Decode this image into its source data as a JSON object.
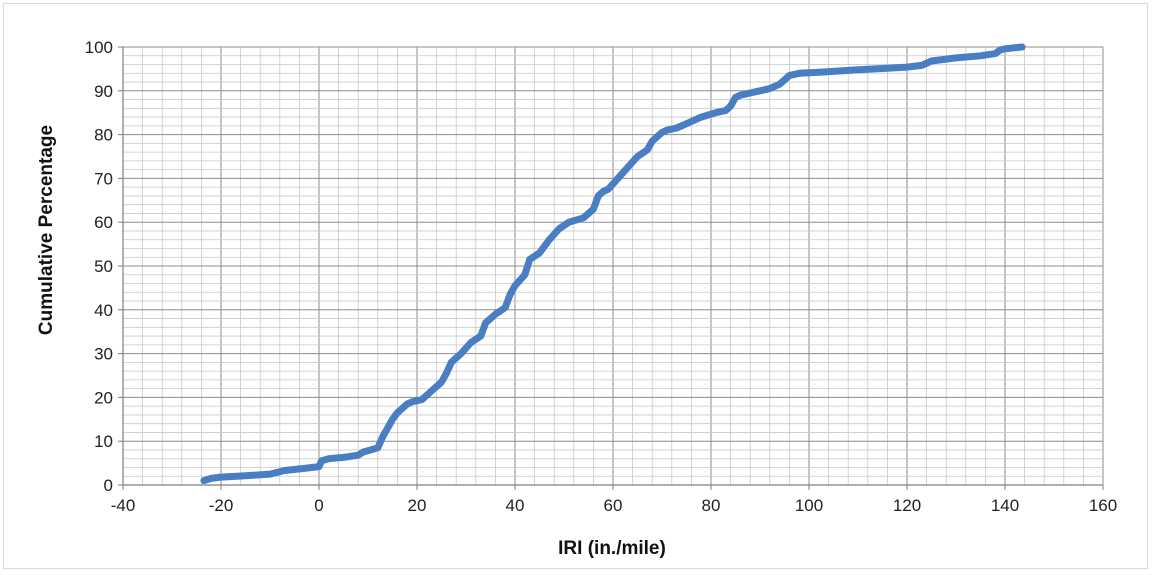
{
  "chart_data": {
    "type": "line",
    "title": "",
    "xlabel": "IRI (in./mile)",
    "ylabel": "Cumulative Percentage",
    "xlim": [
      -40,
      160
    ],
    "ylim": [
      0,
      100
    ],
    "x_ticks": [
      "-40",
      "-20",
      "0",
      "20",
      "40",
      "60",
      "80",
      "100",
      "120",
      "140",
      "160"
    ],
    "y_ticks": [
      "0",
      "10",
      "20",
      "30",
      "40",
      "50",
      "60",
      "70",
      "80",
      "90",
      "100"
    ],
    "grid": true,
    "legend": "none",
    "series": [
      {
        "name": "",
        "color": "#4a7ec2",
        "x": [
          -23.5,
          -22,
          -20,
          -15,
          -10,
          -7,
          -3,
          0,
          0.5,
          2,
          5,
          8,
          9,
          12,
          13,
          14,
          15,
          16,
          17,
          18,
          19,
          21,
          23,
          25,
          26,
          27,
          29,
          31,
          33,
          34,
          35,
          36,
          38,
          39,
          40,
          42,
          43,
          45,
          47,
          49,
          51,
          54,
          56,
          57,
          58,
          59,
          61,
          63,
          65,
          67,
          68,
          70,
          71,
          73,
          75,
          78,
          81,
          83,
          84,
          85,
          86,
          88,
          90,
          92,
          94,
          96,
          98,
          103,
          110,
          115,
          120,
          123,
          125,
          130,
          135,
          138,
          139,
          140,
          143.5
        ],
        "y": [
          1,
          1.5,
          1.8,
          2.1,
          2.5,
          3.3,
          3.8,
          4.2,
          5.5,
          6,
          6.3,
          6.8,
          7.5,
          8.5,
          11,
          13,
          15,
          16.5,
          17.5,
          18.5,
          19,
          19.5,
          21.5,
          23.5,
          25.5,
          28,
          30,
          32.5,
          34,
          37,
          38,
          39,
          40.5,
          43.5,
          45.5,
          48,
          51.5,
          53,
          56,
          58.5,
          60,
          61,
          63,
          66,
          67,
          67.5,
          70,
          72.5,
          75,
          76.5,
          78.5,
          80.5,
          81,
          81.5,
          82.5,
          84,
          85,
          85.5,
          86.5,
          88.5,
          89,
          89.5,
          90,
          90.5,
          91.5,
          93.5,
          94,
          94.3,
          94.8,
          95.1,
          95.4,
          95.8,
          96.8,
          97.5,
          98,
          98.5,
          99.3,
          99.6,
          100
        ]
      }
    ]
  }
}
